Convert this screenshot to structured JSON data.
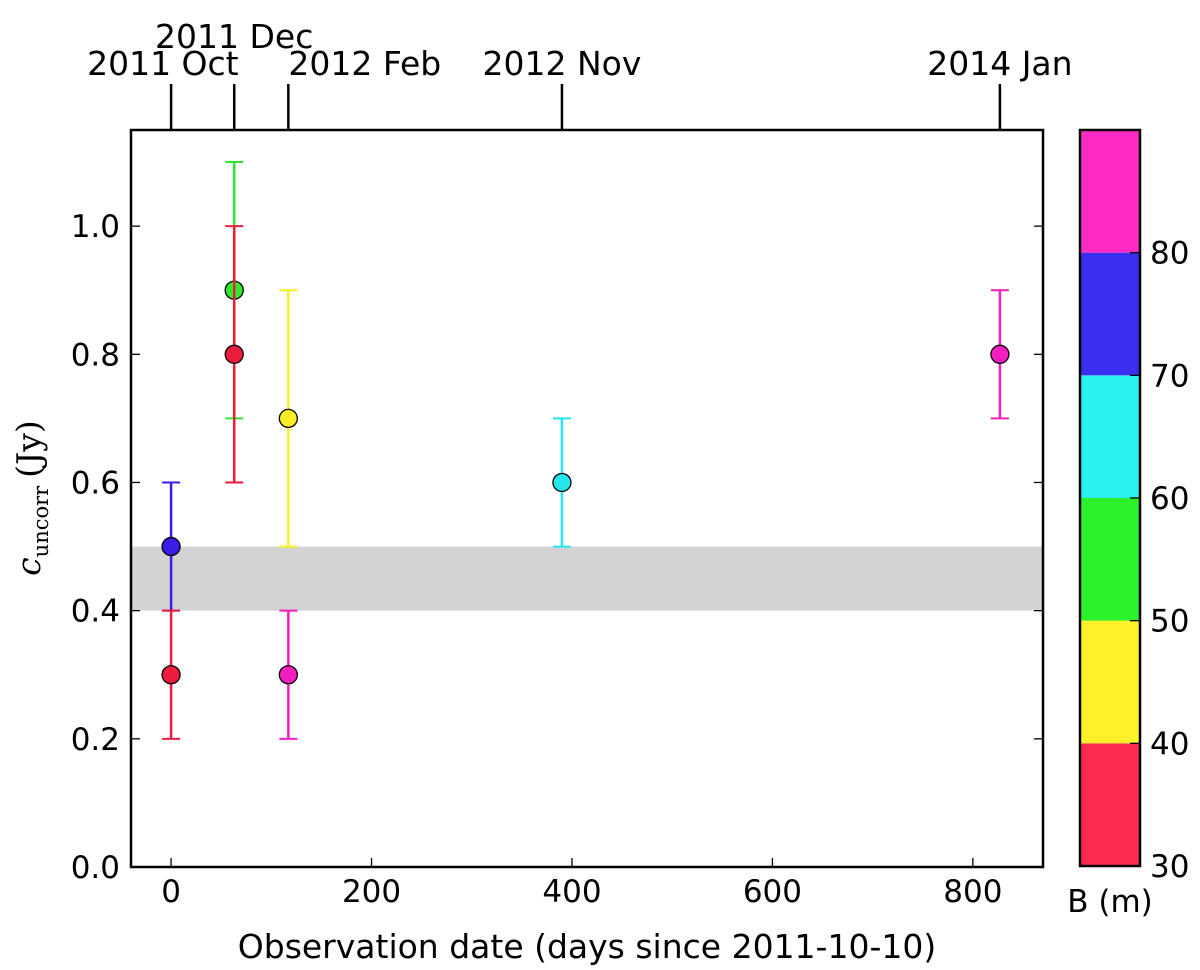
{
  "chart_data": {
    "type": "scatter",
    "xlabel": "Observation date (days since 2011-10-10)",
    "ylabel": {
      "symbol": "c",
      "subscript": "uncorr",
      "unit": "(Jy)"
    },
    "xlim": [
      -40,
      870
    ],
    "ylim": [
      0.0,
      1.15
    ],
    "x_ticks": [
      0,
      200,
      400,
      600,
      800
    ],
    "y_ticks": [
      "0.0",
      "0.2",
      "0.4",
      "0.6",
      "0.8",
      "1.0"
    ],
    "top_axis_labels": [
      {
        "label": "2011 Oct",
        "x": 0
      },
      {
        "label": "2011 Dec",
        "x": 63
      },
      {
        "label": "2012 Feb",
        "x": 117
      },
      {
        "label": "2012 Nov",
        "x": 390
      },
      {
        "label": "2014 Jan",
        "x": 827
      }
    ],
    "band": {
      "y_low": 0.4,
      "y_high": 0.5,
      "color": "#d3d3d3"
    },
    "points": [
      {
        "x": 0,
        "y": 0.5,
        "err_low": 0.4,
        "err_high": 0.6,
        "baseline_m": 77,
        "color": "#3b1de8"
      },
      {
        "x": 0,
        "y": 0.3,
        "err_low": 0.2,
        "err_high": 0.4,
        "baseline_m": 33,
        "color": "#ec1c3c"
      },
      {
        "x": 63,
        "y": 0.9,
        "err_low": 0.7,
        "err_high": 1.1,
        "baseline_m": 55,
        "color": "#2ee82e"
      },
      {
        "x": 63,
        "y": 0.8,
        "err_low": 0.6,
        "err_high": 1.0,
        "baseline_m": 33,
        "color": "#ec1c3c"
      },
      {
        "x": 117,
        "y": 0.7,
        "err_low": 0.5,
        "err_high": 0.9,
        "baseline_m": 45,
        "color": "#fbee22"
      },
      {
        "x": 117,
        "y": 0.3,
        "err_low": 0.2,
        "err_high": 0.4,
        "baseline_m": 85,
        "color": "#f21ebe"
      },
      {
        "x": 390,
        "y": 0.6,
        "err_low": 0.5,
        "err_high": 0.7,
        "baseline_m": 65,
        "color": "#26e6ec"
      },
      {
        "x": 827,
        "y": 0.8,
        "err_low": 0.7,
        "err_high": 0.9,
        "baseline_m": 85,
        "color": "#f21ebe"
      }
    ],
    "colorbar": {
      "label": "B (m)",
      "range": [
        30,
        90
      ],
      "ticks": [
        30,
        40,
        50,
        60,
        70,
        80
      ],
      "segments": [
        {
          "from": 30,
          "to": 40,
          "color": "#ff2a50"
        },
        {
          "from": 40,
          "to": 50,
          "color": "#fff02a"
        },
        {
          "from": 50,
          "to": 60,
          "color": "#2cf22c"
        },
        {
          "from": 60,
          "to": 70,
          "color": "#2af0f2"
        },
        {
          "from": 70,
          "to": 80,
          "color": "#3a2ef0"
        },
        {
          "from": 80,
          "to": 90,
          "color": "#ff2ac4"
        }
      ]
    }
  }
}
